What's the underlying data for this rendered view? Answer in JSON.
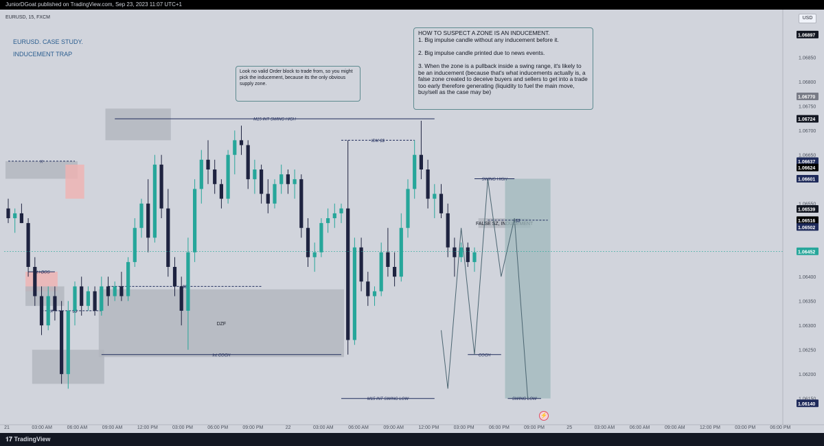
{
  "topbar": {
    "text": "JuniorDGoat published on TradingView.com, Sep 23, 2023 11:07 UTC+1"
  },
  "chart_header": {
    "symbol": "EURUSD, 15, FXCM",
    "currency_button": "USD"
  },
  "titles": {
    "line1": "EURUSD. CASE STUDY.",
    "line2": "INDUCEMENT TRAP"
  },
  "callouts": {
    "small": "Look no valid Order block to trade from, so you might pick the inducement, because its the only obvious supply zone.",
    "large": "HOW TO SUSPECT A ZONE IS AN INDUCEMENT.\n1. Big impulse candle without any inducement before it.\n\n2. Big impulse candle printed due to news events.\n\n3. When the zone is a pullback inside a swing range, it's likely to be an inducement (because that's what inducements actually is, a false zone created to deceive buyers and sellers to get into a trade too early therefore generating (liquidity to fuel the main move, buy/sell as the case may be)"
  },
  "colors": {
    "background": "#d1d4dc",
    "up_candle": "#26a69a",
    "down_candle": "#1e2340",
    "zone_gray": "#b2b5be",
    "zone_red": "#f0b2b2",
    "zone_teal": "#9fb8bc",
    "line_navy": "#1e2a5a",
    "projection_line": "#4a6470"
  },
  "bottombar": {
    "brand": "TradingView"
  },
  "chart_data": {
    "type": "candlestick",
    "symbol": "EURUSD",
    "timeframe": "15",
    "yaxis": {
      "range": [
        1.0612,
        1.0692
      ],
      "ticks": [
        "1.06150",
        "1.06200",
        "1.06250",
        "1.06300",
        "1.06350",
        "1.06400",
        "1.06550",
        "1.06650",
        "1.06700",
        "1.06750",
        "1.06800",
        "1.06850"
      ],
      "badges": [
        {
          "label": "1.06897",
          "value": 1.06897,
          "style": "dark"
        },
        {
          "label": "1.06770",
          "value": 1.0677,
          "style": "gray"
        },
        {
          "label": "1.06724",
          "value": 1.06724,
          "style": "dark"
        },
        {
          "label": "1.06637",
          "value": 1.06637,
          "style": "navy"
        },
        {
          "label": "1.06624",
          "value": 1.06624,
          "style": "black"
        },
        {
          "label": "1.06601",
          "value": 1.06601,
          "style": "navy"
        },
        {
          "label": "1.06539",
          "value": 1.06539,
          "style": "dark"
        },
        {
          "label": "1.06516",
          "value": 1.06516,
          "style": "black"
        },
        {
          "label": "1.06502",
          "value": 1.06502,
          "style": "navy"
        },
        {
          "label": "1.06452",
          "value": 1.06452,
          "style": "teal"
        },
        {
          "label": "1.06140",
          "value": 1.0614,
          "style": "navy"
        }
      ]
    },
    "xaxis": {
      "ticks": [
        "21",
        "03:00 AM",
        "06:00 AM",
        "09:00 AM",
        "12:00 PM",
        "03:00 PM",
        "06:00 PM",
        "09:00 PM",
        "22",
        "03:00 AM",
        "06:00 AM",
        "09:00 AM",
        "12:00 PM",
        "03:00 PM",
        "06:00 PM",
        "09:00 PM",
        "25",
        "03:00 AM",
        "06:00 AM",
        "09:00 AM",
        "12:00 PM",
        "03:00 PM",
        "06:00 PM"
      ]
    },
    "candles": [
      [
        1.0654,
        1.0656,
        1.0651,
        1.0652
      ],
      [
        1.0652,
        1.0654,
        1.0649,
        1.0653
      ],
      [
        1.0653,
        1.0655,
        1.0651,
        1.0651
      ],
      [
        1.0651,
        1.0652,
        1.064,
        1.0642
      ],
      [
        1.0642,
        1.0644,
        1.0634,
        1.0636
      ],
      [
        1.0636,
        1.0638,
        1.0628,
        1.063
      ],
      [
        1.063,
        1.0638,
        1.0629,
        1.0636
      ],
      [
        1.0636,
        1.0638,
        1.0631,
        1.0633
      ],
      [
        1.0633,
        1.0635,
        1.0618,
        1.062
      ],
      [
        1.062,
        1.0635,
        1.0617,
        1.0633
      ],
      [
        1.0633,
        1.0639,
        1.063,
        1.0638
      ],
      [
        1.0638,
        1.064,
        1.0632,
        1.0634
      ],
      [
        1.0634,
        1.0638,
        1.0633,
        1.0637
      ],
      [
        1.0637,
        1.0638,
        1.0632,
        1.0633
      ],
      [
        1.0633,
        1.064,
        1.0632,
        1.0638
      ],
      [
        1.0638,
        1.064,
        1.0634,
        1.0636
      ],
      [
        1.0636,
        1.0639,
        1.0635,
        1.0638
      ],
      [
        1.0638,
        1.0641,
        1.0635,
        1.0636
      ],
      [
        1.0636,
        1.0644,
        1.0635,
        1.0643
      ],
      [
        1.0643,
        1.0652,
        1.0642,
        1.065
      ],
      [
        1.065,
        1.0656,
        1.0648,
        1.0655
      ],
      [
        1.0655,
        1.066,
        1.0645,
        1.0648
      ],
      [
        1.0648,
        1.0665,
        1.0647,
        1.0663
      ],
      [
        1.0663,
        1.0665,
        1.0652,
        1.0654
      ],
      [
        1.0654,
        1.0658,
        1.064,
        1.0642
      ],
      [
        1.0642,
        1.0644,
        1.0636,
        1.0638
      ],
      [
        1.0638,
        1.064,
        1.063,
        1.0633
      ],
      [
        1.0633,
        1.0648,
        1.0625,
        1.0645
      ],
      [
        1.0645,
        1.066,
        1.0643,
        1.0658
      ],
      [
        1.0658,
        1.0666,
        1.0655,
        1.0664
      ],
      [
        1.0664,
        1.0668,
        1.0659,
        1.0662
      ],
      [
        1.0662,
        1.0664,
        1.0657,
        1.0659
      ],
      [
        1.0659,
        1.066,
        1.0654,
        1.0656
      ],
      [
        1.0656,
        1.0666,
        1.0655,
        1.0665
      ],
      [
        1.0665,
        1.067,
        1.0661,
        1.0668
      ],
      [
        1.0668,
        1.0671,
        1.0665,
        1.0667
      ],
      [
        1.0667,
        1.0668,
        1.0658,
        1.066
      ],
      [
        1.066,
        1.0664,
        1.0657,
        1.0662
      ],
      [
        1.0662,
        1.0663,
        1.0655,
        1.0657
      ],
      [
        1.0657,
        1.066,
        1.0653,
        1.0655
      ],
      [
        1.0655,
        1.066,
        1.0654,
        1.0659
      ],
      [
        1.0659,
        1.0663,
        1.0657,
        1.0661
      ],
      [
        1.0661,
        1.0662,
        1.0657,
        1.0659
      ],
      [
        1.0659,
        1.0662,
        1.0656,
        1.066
      ],
      [
        1.066,
        1.0661,
        1.0648,
        1.065
      ],
      [
        1.065,
        1.0652,
        1.0642,
        1.0644
      ],
      [
        1.0644,
        1.0647,
        1.0641,
        1.0645
      ],
      [
        1.0645,
        1.0652,
        1.0644,
        1.0651
      ],
      [
        1.0651,
        1.0654,
        1.0649,
        1.0652
      ],
      [
        1.0652,
        1.0655,
        1.065,
        1.0653
      ],
      [
        1.0653,
        1.0655,
        1.0651,
        1.0654
      ],
      [
        1.0654,
        1.0668,
        1.0624,
        1.0627
      ],
      [
        1.0627,
        1.0648,
        1.0626,
        1.0646
      ],
      [
        1.0646,
        1.0648,
        1.0637,
        1.0639
      ],
      [
        1.0639,
        1.0641,
        1.0634,
        1.0636
      ],
      [
        1.0636,
        1.0638,
        1.0634,
        1.0637
      ],
      [
        1.0637,
        1.0647,
        1.0636,
        1.0645
      ],
      [
        1.0645,
        1.065,
        1.064,
        1.0642
      ],
      [
        1.0642,
        1.0645,
        1.0638,
        1.064
      ],
      [
        1.064,
        1.0653,
        1.0639,
        1.065
      ],
      [
        1.065,
        1.066,
        1.0648,
        1.0658
      ],
      [
        1.0658,
        1.0668,
        1.0656,
        1.0665
      ],
      [
        1.0665,
        1.0672,
        1.066,
        1.0662
      ],
      [
        1.0662,
        1.0664,
        1.0654,
        1.0656
      ],
      [
        1.0656,
        1.0659,
        1.0652,
        1.0657
      ],
      [
        1.0657,
        1.0659,
        1.0652,
        1.0653
      ],
      [
        1.0653,
        1.0655,
        1.0644,
        1.0646
      ],
      [
        1.0646,
        1.0648,
        1.064,
        1.0644
      ],
      [
        1.0644,
        1.0647,
        1.0643,
        1.0646
      ],
      [
        1.0646,
        1.0647,
        1.0642,
        1.0643
      ],
      [
        1.0643,
        1.0646,
        1.0641,
        1.0645
      ]
    ],
    "zones": [
      {
        "label": "",
        "from_index": 15,
        "to_index": 24,
        "top": 1.06745,
        "bottom": 1.0668,
        "style": "gray"
      },
      {
        "label": "",
        "from_index": 0,
        "to_index": 10,
        "top": 1.06637,
        "bottom": 1.06601,
        "style": "gray"
      },
      {
        "label": "",
        "from_index": 9,
        "to_index": 11,
        "top": 1.0663,
        "bottom": 1.0656,
        "style": "red"
      },
      {
        "label": "",
        "from_index": 3,
        "to_index": 7,
        "top": 1.0641,
        "bottom": 1.0637,
        "style": "red"
      },
      {
        "label": "",
        "from_index": 3,
        "to_index": 8,
        "top": 1.0638,
        "bottom": 1.0634,
        "style": "gray"
      },
      {
        "label": "",
        "from_index": 4,
        "to_index": 14,
        "top": 1.0625,
        "bottom": 1.0618,
        "style": "gray"
      },
      {
        "label": "DZF",
        "from_index": 14,
        "to_index": 50,
        "top": 1.06374,
        "bottom": 1.06235,
        "style": "gray"
      },
      {
        "label": "FALSE SZ, INDUCEMENT",
        "from_index": 71,
        "to_index": 78,
        "top": 1.0652,
        "bottom": 1.065,
        "style": "gray"
      },
      {
        "label": "",
        "from_index": 75,
        "to_index": 81,
        "top": 1.06601,
        "bottom": 1.0615,
        "style": "teal"
      }
    ],
    "levels": [
      {
        "label": "M15 INT SWING HIGH",
        "price": 1.06724,
        "from_index": 16,
        "to_index": 64
      },
      {
        "label": "IDM $$",
        "price": 1.0668,
        "from_index": 50,
        "to_index": 61
      },
      {
        "label": "X",
        "price": 1.06637,
        "from_index": 0,
        "to_index": 10
      },
      {
        "label": "$$",
        "price": 1.0638,
        "from_index": 15,
        "to_index": 38
      },
      {
        "label": "$$",
        "price": 1.0633,
        "from_index": 6,
        "to_index": 14
      },
      {
        "label": "Int COCH",
        "price": 1.0624,
        "from_index": 14,
        "to_index": 50
      },
      {
        "label": "M15 INT SWING LOW",
        "price": 1.0615,
        "from_index": 50,
        "to_index": 64
      },
      {
        "label": "Int i-BOS",
        "price": 1.0641,
        "from_index": 3,
        "to_index": 7
      },
      {
        "label": "X",
        "price": 1.0633,
        "from_index": 5,
        "to_index": 8
      },
      {
        "label": "SWING HIGH",
        "price": 1.06601,
        "from_index": 70,
        "to_index": 76
      },
      {
        "label": "$$",
        "price": 1.06516,
        "from_index": 72,
        "to_index": 81
      },
      {
        "label": "COCH",
        "price": 1.0624,
        "from_index": 69,
        "to_index": 74
      },
      {
        "label": "SWING LOW",
        "price": 1.0615,
        "from_index": 75,
        "to_index": 80
      }
    ],
    "projection_path": [
      {
        "index": 65,
        "price": 1.0629
      },
      {
        "index": 66,
        "price": 1.0617
      },
      {
        "index": 68,
        "price": 1.065
      },
      {
        "index": 70,
        "price": 1.0624
      },
      {
        "index": 72,
        "price": 1.066
      },
      {
        "index": 74,
        "price": 1.064
      },
      {
        "index": 76,
        "price": 1.0652
      },
      {
        "index": 78,
        "price": 1.0615
      }
    ]
  }
}
